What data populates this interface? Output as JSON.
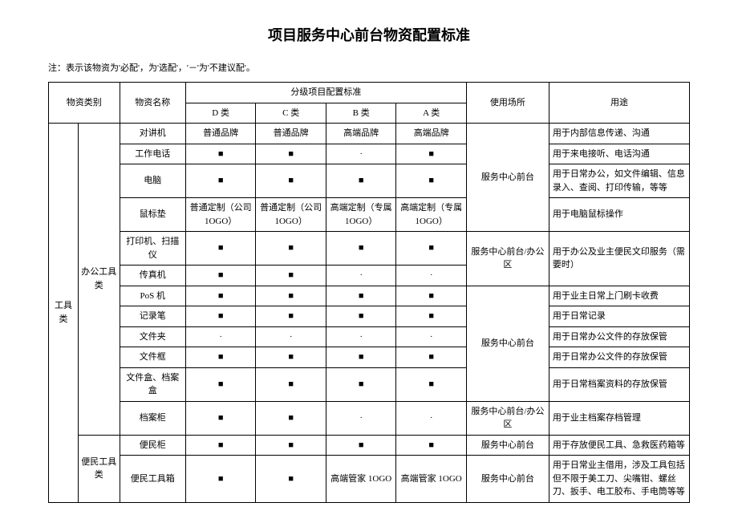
{
  "title": "项目服务中心前台物资配置标准",
  "note": "注：表示该物资为'必配'，为'选配'，'－'为'不建议配'。",
  "headers": {
    "cat": "物资类别",
    "name": "物资名称",
    "std": "分级项目配置标准",
    "d": "D 类",
    "c": "C 类",
    "b": "B 类",
    "a": "A 类",
    "place": "使用场所",
    "use": "用途"
  },
  "cat1": "工具类",
  "cat2a": "办公工具类",
  "cat2b": "便民工具类",
  "rows": [
    {
      "name": "对讲机",
      "d": "普通品牌",
      "c": "普通品牌",
      "b": "高端品牌",
      "a": "高端品牌",
      "use": "用于内部信息传递、沟通"
    },
    {
      "name": "工作电话",
      "d": "■",
      "c": "■",
      "b": "·",
      "a": "■",
      "use": "用于来电接听、电话沟通"
    },
    {
      "name": "电脑",
      "d": "■",
      "c": "■",
      "b": "■",
      "a": "■",
      "use": "用于日常办公，如文件编辑、信息录入、查阅、打印传输，等等"
    },
    {
      "name": "鼠标垫",
      "d": "普通定制（公司 1OGO）",
      "c": "普通定制（公司 1OGO）",
      "b": "高端定制（专属 1OGO）",
      "a": "高端定制（专属 1OGO）",
      "use": "用于电脑鼠标操作"
    },
    {
      "name": "打印机、扫描仪",
      "d": "■",
      "c": "■",
      "b": "■",
      "a": "■",
      "use": "用于办公及业主便民文印服务（需要时）"
    },
    {
      "name": "传真机",
      "d": "■",
      "c": "■",
      "b": "·",
      "a": "·",
      "use": ""
    },
    {
      "name": "PoS 机",
      "d": "■",
      "c": "■",
      "b": "■",
      "a": "■",
      "use": "用于业主日常上门刷卡收费"
    },
    {
      "name": "记录笔",
      "d": "■",
      "c": "■",
      "b": "■",
      "a": "■",
      "use": "用于日常记录"
    },
    {
      "name": "文件夹",
      "d": "·",
      "c": "·",
      "b": "·",
      "a": "·",
      "use": "用于日常办公文件的存放保管"
    },
    {
      "name": "文件框",
      "d": "■",
      "c": "■",
      "b": "■",
      "a": "■",
      "use": "用于日常办公文件的存放保管"
    },
    {
      "name": "文件盒、档案盒",
      "d": "■",
      "c": "■",
      "b": "■",
      "a": "■",
      "use": "用于日常档案资料的存放保管"
    },
    {
      "name": "档案柜",
      "d": "■",
      "c": "■",
      "b": "·",
      "a": "·",
      "use": "用于业主档案存档管理"
    },
    {
      "name": "便民柜",
      "d": "■",
      "c": "■",
      "b": "■",
      "a": "■",
      "use": "用于存放便民工具、急救医药箱等"
    },
    {
      "name": "便民工具箱",
      "d": "■",
      "c": "■",
      "b": "高端管家 1OGO",
      "a": "高端管家 1OGO",
      "use": "用于日常业主借用，涉及工具包括但不限于美工刀、尖嘴钳、螺丝刀、扳手、电工胶布、手电筒等等"
    }
  ],
  "places": {
    "p1": "服务中心前台",
    "p2": "服务中心前台/办公区",
    "p3": "服务中心前台",
    "p4": "服务中心前台/办公区",
    "p5": "服务中心前台",
    "p6": "服务中心前台"
  }
}
